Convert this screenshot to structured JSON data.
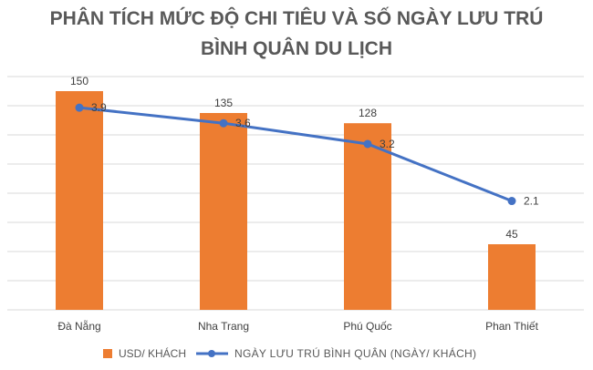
{
  "chart_data": {
    "type": "bar",
    "title_line1": "PHÂN TÍCH MỨC ĐỘ CHI TIÊU VÀ SỐ NGÀY LƯU TRÚ",
    "title_line2": "BÌNH QUÂN DU LỊCH",
    "categories": [
      "Đà Nẵng",
      "Nha Trang",
      "Phú Quốc",
      "Phan Thiết"
    ],
    "series": [
      {
        "name": "USD/ KHÁCH",
        "type": "bar",
        "values": [
          150,
          135,
          128,
          45
        ],
        "color": "#ED7D31"
      },
      {
        "name": "NGÀY LƯU TRÚ BÌNH QUÂN (NGÀY/ KHÁCH)",
        "type": "line",
        "values": [
          3.9,
          3.6,
          3.2,
          2.1
        ],
        "color": "#4472C4"
      }
    ],
    "value_labels_bar": [
      "150",
      "135",
      "128",
      "45"
    ],
    "value_labels_line": [
      "3.9",
      "3.6",
      "3.2",
      "2.1"
    ],
    "ylim_bar": [
      0,
      160
    ],
    "ylim_line": [
      0,
      4.5
    ],
    "grid": true,
    "legend_position": "bottom"
  }
}
